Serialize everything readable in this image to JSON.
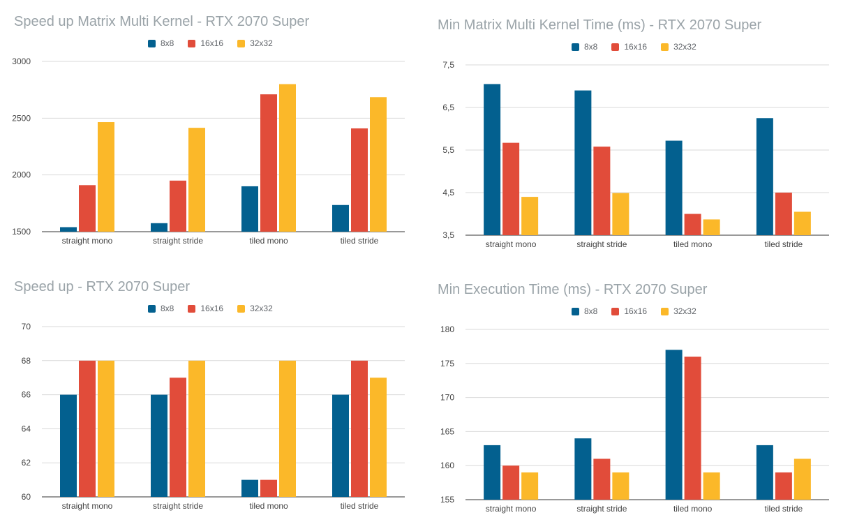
{
  "colors": {
    "8x8": "#03608f",
    "16x16": "#e14c3a",
    "32x32": "#fbb829",
    "grid": "#d9d9d9",
    "axis": "#333333"
  },
  "chart_data": [
    {
      "type": "bar",
      "title": "Speed up Matrix Multi Kernel - RTX 2070 Super",
      "categories": [
        "straight mono",
        "straight stride",
        "tiled mono",
        "tiled stride"
      ],
      "series": [
        {
          "name": "8x8",
          "values": [
            1540,
            1575,
            1900,
            1735
          ]
        },
        {
          "name": "16x16",
          "values": [
            1910,
            1950,
            2710,
            2410
          ]
        },
        {
          "name": "32x32",
          "values": [
            2465,
            2415,
            2800,
            2685
          ]
        }
      ],
      "ylim": [
        1500,
        3000
      ],
      "yticks": [
        "1500",
        "2000",
        "2500",
        "3000"
      ],
      "grid": true,
      "legend": "top"
    },
    {
      "type": "bar",
      "title": "Min Matrix Multi Kernel Time (ms) - RTX 2070 Super",
      "categories": [
        "straight mono",
        "straight stride",
        "tiled mono",
        "tiled stride"
      ],
      "series": [
        {
          "name": "8x8",
          "values": [
            7.05,
            6.9,
            5.72,
            6.25
          ]
        },
        {
          "name": "16x16",
          "values": [
            5.67,
            5.58,
            4.0,
            4.5
          ]
        },
        {
          "name": "32x32",
          "values": [
            4.4,
            4.49,
            3.87,
            4.05
          ]
        }
      ],
      "ylim": [
        3.5,
        7.5
      ],
      "yticks": [
        "3,5",
        "4,5",
        "5,5",
        "6,5",
        "7,5"
      ],
      "grid": true,
      "legend": "top"
    },
    {
      "type": "bar",
      "title": "Speed up - RTX 2070 Super",
      "categories": [
        "straight mono",
        "straight stride",
        "tiled mono",
        "tiled stride"
      ],
      "series": [
        {
          "name": "8x8",
          "values": [
            66,
            66,
            61,
            66
          ]
        },
        {
          "name": "16x16",
          "values": [
            68,
            67,
            61,
            68
          ]
        },
        {
          "name": "32x32",
          "values": [
            68,
            68,
            68,
            67
          ]
        }
      ],
      "ylim": [
        60,
        70
      ],
      "yticks": [
        "60",
        "62",
        "64",
        "66",
        "68",
        "70"
      ],
      "grid": true,
      "legend": "top"
    },
    {
      "type": "bar",
      "title": "Min Execution Time (ms) - RTX 2070 Super",
      "categories": [
        "straight mono",
        "straight stride",
        "tiled mono",
        "tiled stride"
      ],
      "series": [
        {
          "name": "8x8",
          "values": [
            163,
            164,
            177,
            163
          ]
        },
        {
          "name": "16x16",
          "values": [
            160,
            161,
            176,
            159
          ]
        },
        {
          "name": "32x32",
          "values": [
            159,
            159,
            159,
            161
          ]
        }
      ],
      "ylim": [
        155,
        180
      ],
      "yticks": [
        "155",
        "160",
        "165",
        "170",
        "175",
        "180"
      ],
      "grid": true,
      "legend": "top"
    }
  ]
}
